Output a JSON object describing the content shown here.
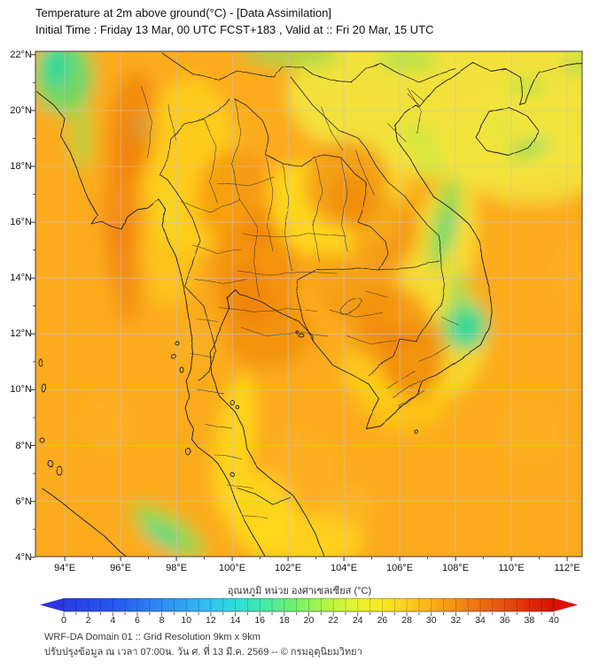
{
  "header": {
    "title": "Temperature at 2m above ground(°C) - [Data Assimilation]",
    "subtitle": "Initial Time : Friday 13 Mar, 00 UTC FCST+183 , Valid at :: Fri 20 Mar, 15 UTC"
  },
  "map": {
    "lat_ticks": [
      "22°N",
      "20°N",
      "18°N",
      "16°N",
      "14°N",
      "12°N",
      "10°N",
      "8°N",
      "6°N",
      "4°N"
    ],
    "lon_ticks": [
      "94°E",
      "96°E",
      "98°E",
      "100°E",
      "102°E",
      "104°E",
      "106°E",
      "108°E",
      "110°E",
      "112°E"
    ]
  },
  "colorbar": {
    "label": "อุณหภูมิ หน่วย องศาเซลเซียส (°C)",
    "min": 0,
    "max": 40,
    "tick_step": 2,
    "ticks": [
      0,
      2,
      4,
      6,
      8,
      10,
      12,
      14,
      16,
      18,
      20,
      22,
      24,
      26,
      28,
      30,
      32,
      34,
      36,
      38,
      40
    ],
    "gradient": [
      {
        "value": 0,
        "color": "#2A3BE8"
      },
      {
        "value": 4,
        "color": "#2556F0"
      },
      {
        "value": 8,
        "color": "#2E8CF5"
      },
      {
        "value": 12,
        "color": "#2FC4F0"
      },
      {
        "value": 14,
        "color": "#2EDDD9"
      },
      {
        "value": 16,
        "color": "#3EE8B0"
      },
      {
        "value": 18,
        "color": "#62EE7F"
      },
      {
        "value": 20,
        "color": "#8CF353"
      },
      {
        "value": 22,
        "color": "#C0F63C"
      },
      {
        "value": 24,
        "color": "#E8F32E"
      },
      {
        "value": 26,
        "color": "#FAE822"
      },
      {
        "value": 28,
        "color": "#FCCF1C"
      },
      {
        "value": 30,
        "color": "#FBB018"
      },
      {
        "value": 32,
        "color": "#F68F14"
      },
      {
        "value": 34,
        "color": "#F06E10"
      },
      {
        "value": 36,
        "color": "#E84E0C"
      },
      {
        "value": 38,
        "color": "#E02A06"
      },
      {
        "value": 40,
        "color": "#D81000"
      }
    ],
    "arrow_left_color": "#2B35DC",
    "arrow_right_color": "#E01000"
  },
  "footer": {
    "line1": "WRF-DA Domain 01 :: Grid Resolution 9km x 9km",
    "line2": "ปรับปรุงข้อมูล ณ เวลา 07:00น. วัน ศ. ที่ 13 มี.ค. 2569 -- © กรมอุตุนิยมวิทยา"
  }
}
